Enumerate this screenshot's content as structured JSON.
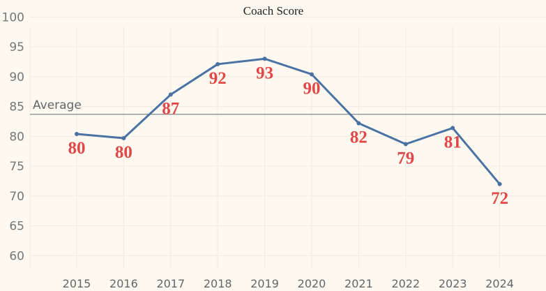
{
  "chart_data": {
    "type": "line",
    "title": "Coach Score",
    "xlabel": "",
    "ylabel": "",
    "categories": [
      "2015",
      "2016",
      "2017",
      "2018",
      "2019",
      "2020",
      "2021",
      "2022",
      "2023",
      "2024"
    ],
    "values": [
      80.4,
      79.7,
      87.0,
      92.1,
      93.0,
      90.4,
      82.2,
      78.7,
      81.4,
      72.0
    ],
    "data_labels": [
      "80",
      "80",
      "87",
      "92",
      "93",
      "90",
      "82",
      "79",
      "81",
      "72"
    ],
    "y_ticks": [
      "60",
      "65",
      "70",
      "75",
      "80",
      "85",
      "90",
      "95",
      "100"
    ],
    "ylim": [
      58,
      101
    ],
    "reference_line": {
      "label": "Average",
      "value": 83.7
    },
    "grid": true,
    "legend": "none",
    "colors": {
      "line": "#4a72a3",
      "label": "#e04848",
      "reference": "#9a9a9a",
      "grid": "#f1ebdf",
      "background": "#fdf9f1"
    }
  }
}
